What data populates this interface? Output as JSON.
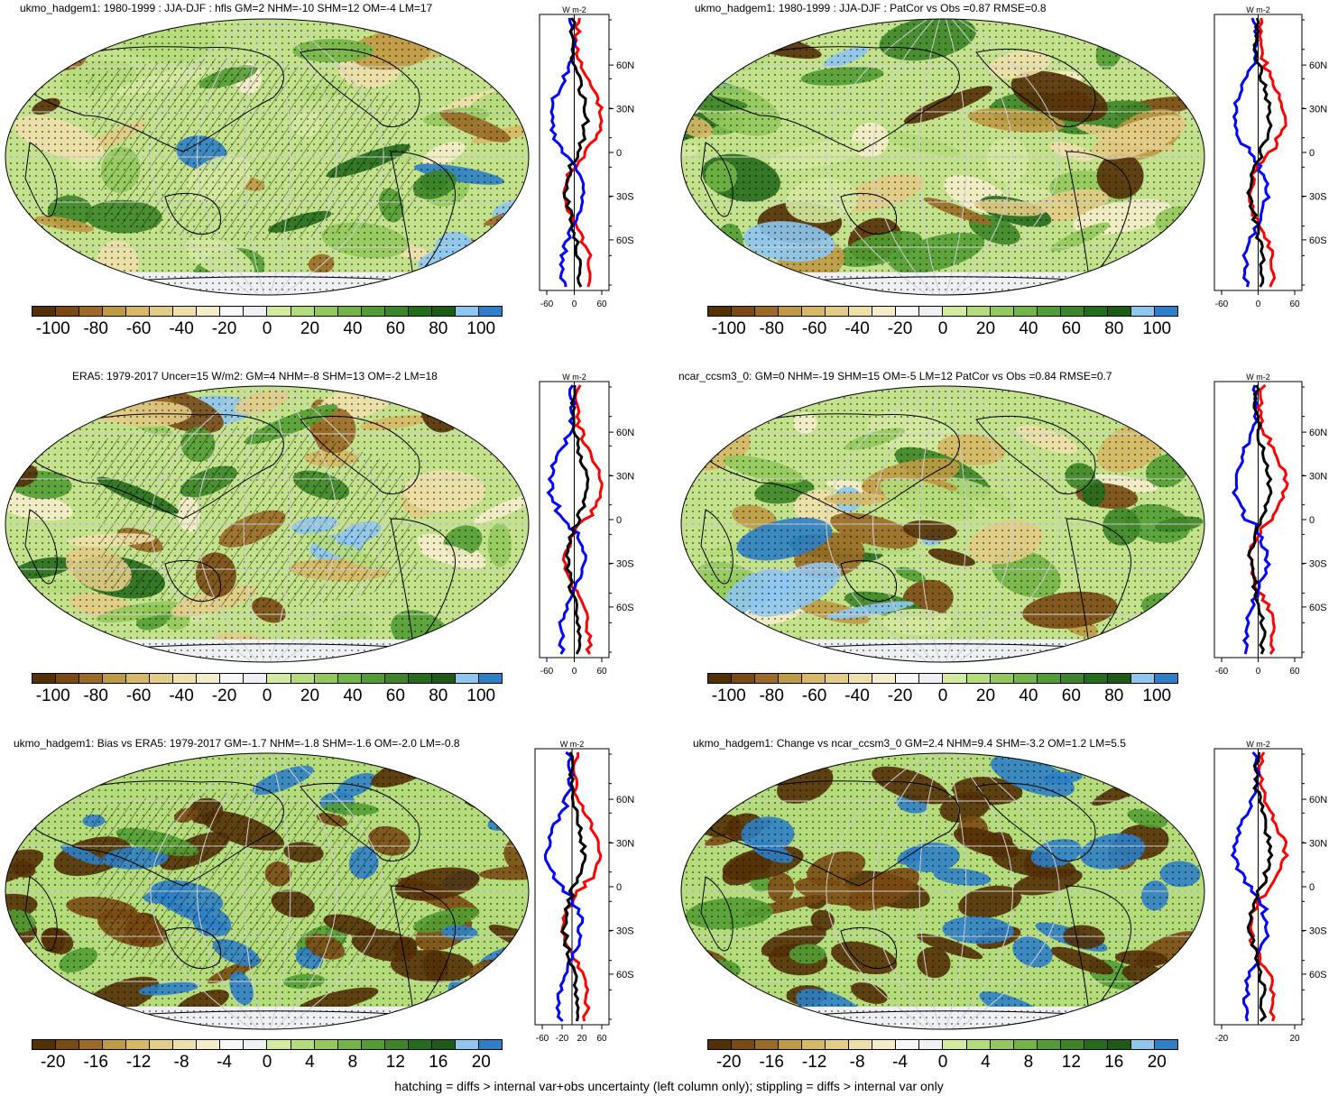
{
  "footer": "hatching = diffs > internal var+obs uncertainty (left column only); stippling = diffs > internal var only",
  "units_label": "W m-2",
  "colors": {
    "palette": [
      "#543005",
      "#7a4a12",
      "#9a6a26",
      "#bf9a44",
      "#d6b865",
      "#e3cc86",
      "#efe0aa",
      "#f5edca",
      "#f8f8fb",
      "#eef0f4",
      "#d4ea9f",
      "#b5dc7a",
      "#93c95c",
      "#73b447",
      "#529d33",
      "#3d8528",
      "#256b1c",
      "#8ec6ef",
      "#2e7fc7"
    ],
    "zonal_model": "#ff0000",
    "zonal_obs": "#0000ff",
    "zonal_diff": "#000000"
  },
  "lat_ticks": [
    "60N",
    "30N",
    "0",
    "30S",
    "60S"
  ],
  "panels": [
    {
      "id": "p1",
      "title": "ukmo_hadgem1: 1980-1999 : JJA-DJF : hfls GM=2 NHM=-10 SHM=12 OM=-4 LM=17",
      "cbar_labels": [
        "-100",
        "-80",
        "-60",
        "-40",
        "-20",
        "0",
        "20",
        "40",
        "60",
        "80",
        "100"
      ],
      "zonal_ticks": [
        "-60",
        "0",
        "60"
      ],
      "hatching": true
    },
    {
      "id": "p2",
      "title": "ukmo_hadgem1: 1980-1999 : JJA-DJF : PatCor vs Obs =0.87 RMSE=0.8",
      "cbar_labels": [
        "-100",
        "-80",
        "-60",
        "-40",
        "-20",
        "0",
        "20",
        "40",
        "60",
        "80",
        "100"
      ],
      "zonal_ticks": [
        "-60",
        "0",
        "60"
      ],
      "hatching": false
    },
    {
      "id": "p3",
      "title": "ERA5: 1979-2017 Uncer=15 W/m2: GM=4 NHM=-8 SHM=13 OM=-2 LM=18",
      "cbar_labels": [
        "-100",
        "-80",
        "-60",
        "-40",
        "-20",
        "0",
        "20",
        "40",
        "60",
        "80",
        "100"
      ],
      "zonal_ticks": [
        "-60",
        "0",
        "60"
      ],
      "hatching": true
    },
    {
      "id": "p4",
      "title": "ncar_ccsm3_0: GM=0 NHM=-19 SHM=15 OM=-5 LM=12 PatCor vs Obs =0.84 RMSE=0.7",
      "cbar_labels": [
        "-100",
        "-80",
        "-60",
        "-40",
        "-20",
        "0",
        "20",
        "40",
        "60",
        "80",
        "100"
      ],
      "zonal_ticks": [
        "-60",
        "0",
        "60"
      ],
      "hatching": false
    },
    {
      "id": "p5",
      "title": "ukmo_hadgem1: Bias vs ERA5: 1979-2017 GM=-1.7 NHM=-1.8 SHM=-1.6 OM=-2.0 LM=-0.8",
      "cbar_labels": [
        "-20",
        "-16",
        "-12",
        "-8",
        "-4",
        "0",
        "4",
        "8",
        "12",
        "16",
        "20"
      ],
      "zonal_ticks": [
        "-60",
        "-20",
        "20",
        "60"
      ],
      "hatching": true
    },
    {
      "id": "p6",
      "title": "ukmo_hadgem1: Change vs ncar_ccsm3_0 GM=2.4 NHM=9.4 SHM=-3.2 OM=1.2 LM=5.5",
      "cbar_labels": [
        "-20",
        "-16",
        "-12",
        "-8",
        "-4",
        "0",
        "4",
        "8",
        "12",
        "16",
        "20"
      ],
      "zonal_ticks": [
        "-20",
        "20"
      ],
      "hatching": false
    }
  ]
}
